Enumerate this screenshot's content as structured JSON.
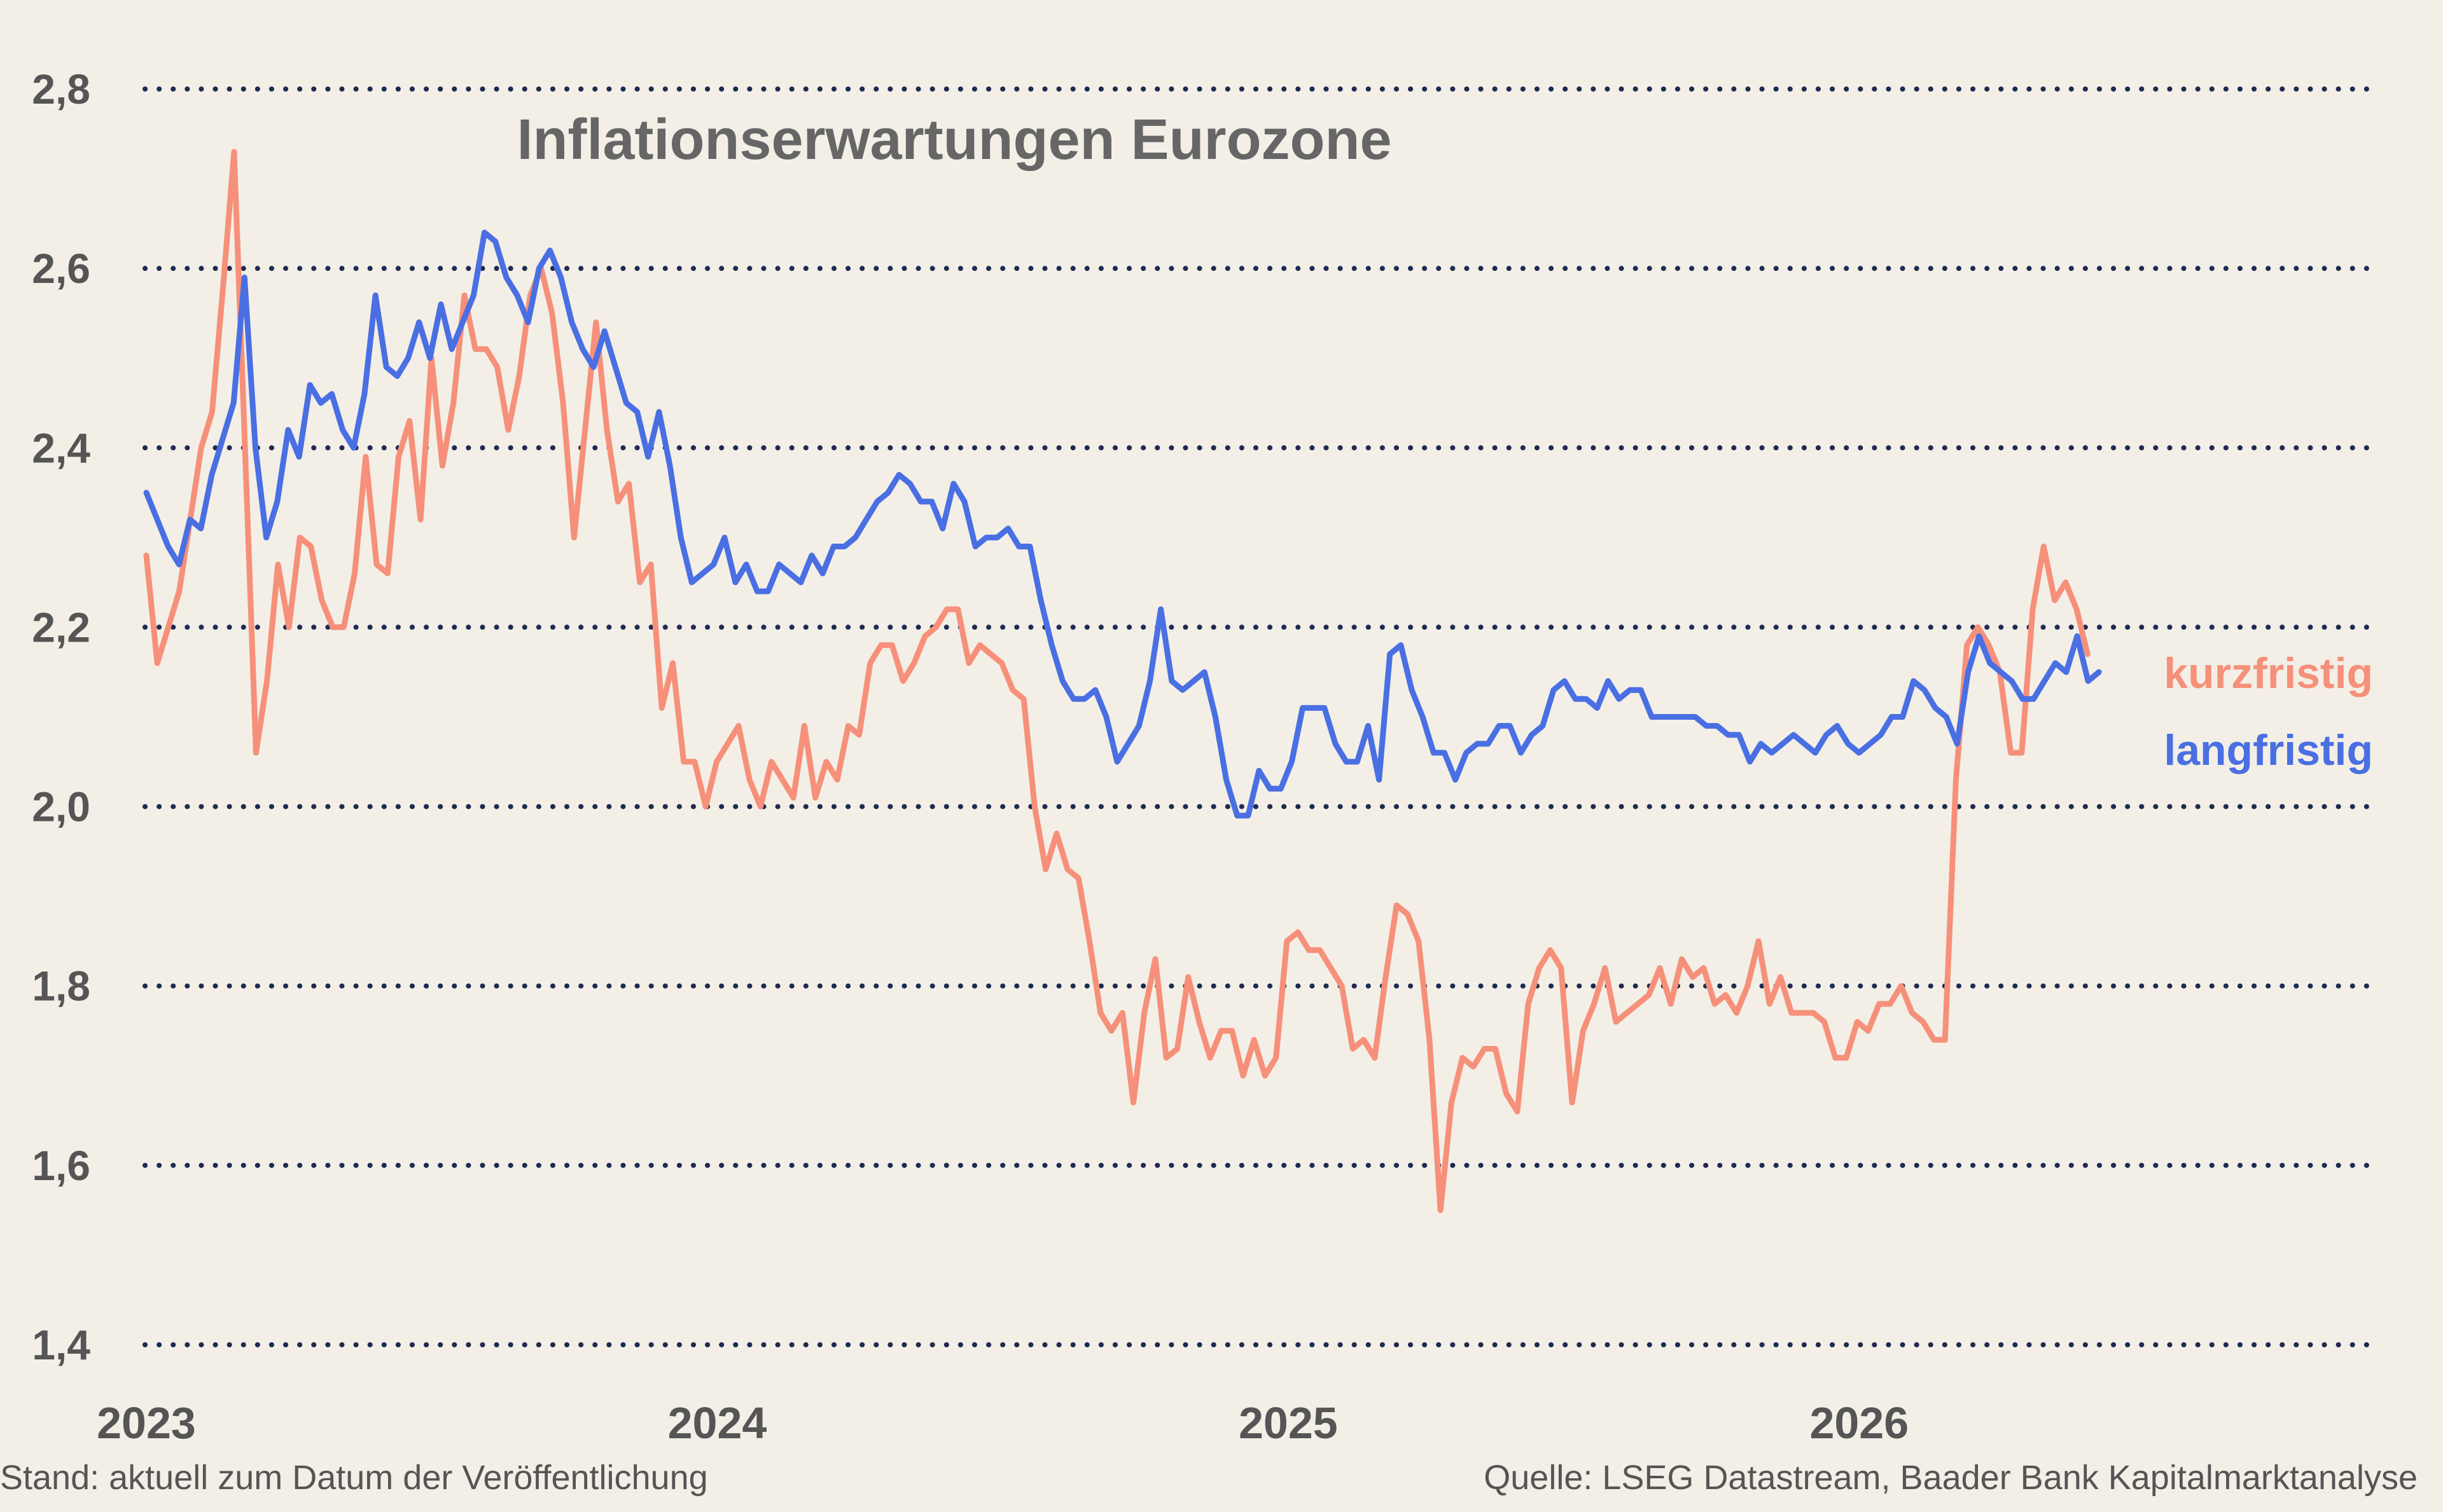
{
  "chart_data": {
    "type": "line",
    "title": "Inflationserwartungen Eurozone",
    "xlabel": "",
    "ylabel": "",
    "ylim": [
      1.4,
      2.8
    ],
    "y_ticks": [
      "1,4",
      "1,6",
      "1,8",
      "2,0",
      "2,2",
      "2,4",
      "2,6",
      "2,8"
    ],
    "x_ticks": [
      "2023",
      "2024",
      "2025",
      "2026"
    ],
    "grid": true,
    "legend_position": "right",
    "x_range": [
      2023.0,
      2026.9
    ],
    "series": [
      {
        "name": "kurzfristig",
        "color": "#f6907a",
        "x_start": 2023.0,
        "x_end": 2026.4,
        "values": [
          2.28,
          2.16,
          2.2,
          2.24,
          2.32,
          2.4,
          2.44,
          2.58,
          2.73,
          2.4,
          2.06,
          2.14,
          2.27,
          2.2,
          2.3,
          2.29,
          2.23,
          2.2,
          2.2,
          2.26,
          2.39,
          2.27,
          2.26,
          2.39,
          2.43,
          2.32,
          2.5,
          2.38,
          2.45,
          2.57,
          2.51,
          2.51,
          2.49,
          2.42,
          2.48,
          2.57,
          2.6,
          2.55,
          2.45,
          2.3,
          2.42,
          2.54,
          2.42,
          2.34,
          2.36,
          2.25,
          2.27,
          2.11,
          2.16,
          2.05,
          2.05,
          2.0,
          2.05,
          2.07,
          2.09,
          2.03,
          2.0,
          2.05,
          2.03,
          2.01,
          2.09,
          2.01,
          2.05,
          2.03,
          2.09,
          2.08,
          2.16,
          2.18,
          2.18,
          2.14,
          2.16,
          2.19,
          2.2,
          2.22,
          2.22,
          2.16,
          2.18,
          2.17,
          2.16,
          2.13,
          2.12,
          2.0,
          1.93,
          1.97,
          1.93,
          1.92,
          1.85,
          1.77,
          1.75,
          1.77,
          1.67,
          1.77,
          1.83,
          1.72,
          1.73,
          1.81,
          1.76,
          1.72,
          1.75,
          1.75,
          1.7,
          1.74,
          1.7,
          1.72,
          1.85,
          1.86,
          1.84,
          1.84,
          1.82,
          1.8,
          1.73,
          1.74,
          1.72,
          1.81,
          1.89,
          1.88,
          1.85,
          1.74,
          1.55,
          1.67,
          1.72,
          1.71,
          1.73,
          1.73,
          1.68,
          1.66,
          1.78,
          1.82,
          1.84,
          1.82,
          1.67,
          1.75,
          1.78,
          1.82,
          1.76,
          1.77,
          1.78,
          1.79,
          1.82,
          1.78,
          1.83,
          1.81,
          1.82,
          1.78,
          1.79,
          1.77,
          1.8,
          1.85,
          1.78,
          1.81,
          1.77,
          1.77,
          1.77,
          1.76,
          1.72,
          1.72,
          1.76,
          1.75,
          1.78,
          1.78,
          1.8,
          1.77,
          1.76,
          1.74,
          1.74,
          2.03,
          2.18,
          2.2,
          2.18,
          2.15,
          2.06,
          2.06,
          2.22,
          2.29,
          2.23,
          2.25,
          2.22,
          2.17
        ]
      },
      {
        "name": "langfristig",
        "color": "#4a6fe3",
        "x_start": 2023.0,
        "x_end": 2026.42,
        "values": [
          2.35,
          2.32,
          2.29,
          2.27,
          2.32,
          2.31,
          2.37,
          2.41,
          2.45,
          2.59,
          2.4,
          2.3,
          2.34,
          2.42,
          2.39,
          2.47,
          2.45,
          2.46,
          2.42,
          2.4,
          2.46,
          2.57,
          2.49,
          2.48,
          2.5,
          2.54,
          2.5,
          2.56,
          2.51,
          2.54,
          2.57,
          2.64,
          2.63,
          2.59,
          2.57,
          2.54,
          2.6,
          2.62,
          2.59,
          2.54,
          2.51,
          2.49,
          2.53,
          2.49,
          2.45,
          2.44,
          2.39,
          2.44,
          2.38,
          2.3,
          2.25,
          2.26,
          2.27,
          2.3,
          2.25,
          2.27,
          2.24,
          2.24,
          2.27,
          2.26,
          2.25,
          2.28,
          2.26,
          2.29,
          2.29,
          2.3,
          2.32,
          2.34,
          2.35,
          2.37,
          2.36,
          2.34,
          2.34,
          2.31,
          2.36,
          2.34,
          2.29,
          2.3,
          2.3,
          2.31,
          2.29,
          2.29,
          2.23,
          2.18,
          2.14,
          2.12,
          2.12,
          2.13,
          2.1,
          2.05,
          2.07,
          2.09,
          2.14,
          2.22,
          2.14,
          2.13,
          2.14,
          2.15,
          2.1,
          2.03,
          1.99,
          1.99,
          2.04,
          2.02,
          2.02,
          2.05,
          2.11,
          2.11,
          2.11,
          2.07,
          2.05,
          2.05,
          2.09,
          2.03,
          2.17,
          2.18,
          2.13,
          2.1,
          2.06,
          2.06,
          2.03,
          2.06,
          2.07,
          2.07,
          2.09,
          2.09,
          2.06,
          2.08,
          2.09,
          2.13,
          2.14,
          2.12,
          2.12,
          2.11,
          2.14,
          2.12,
          2.13,
          2.13,
          2.1,
          2.1,
          2.1,
          2.1,
          2.1,
          2.09,
          2.09,
          2.08,
          2.08,
          2.05,
          2.07,
          2.06,
          2.07,
          2.08,
          2.07,
          2.06,
          2.08,
          2.09,
          2.07,
          2.06,
          2.07,
          2.08,
          2.1,
          2.1,
          2.14,
          2.13,
          2.11,
          2.1,
          2.07,
          2.15,
          2.19,
          2.16,
          2.15,
          2.14,
          2.12,
          2.12,
          2.14,
          2.16,
          2.15,
          2.19,
          2.14,
          2.15
        ]
      }
    ]
  },
  "footer": {
    "left": "Stand: aktuell zum Datum der Veröffentlichung",
    "right": "Quelle: LSEG Datastream, Baader Bank Kapitalmarktanalyse"
  }
}
